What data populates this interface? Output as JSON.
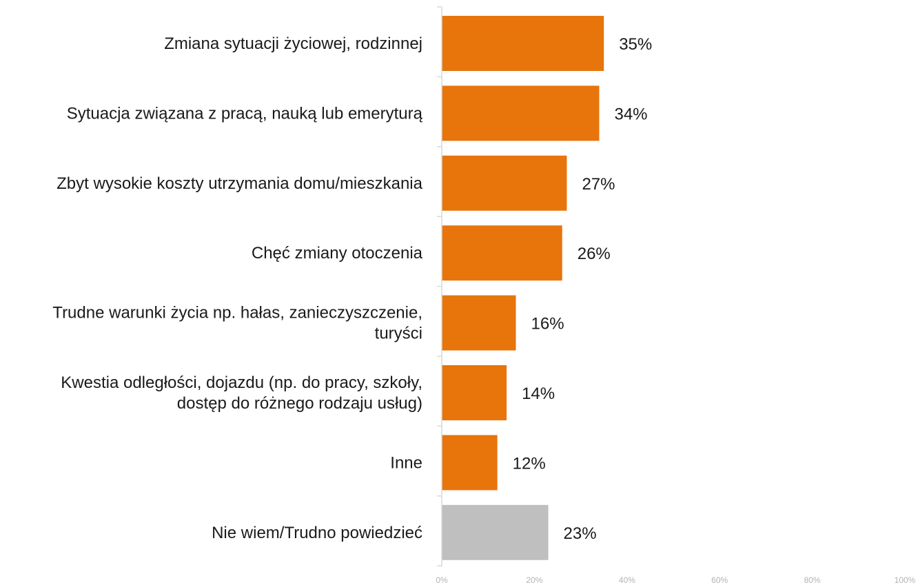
{
  "chart_data": {
    "type": "bar",
    "orientation": "horizontal",
    "categories": [
      [
        "Zmiana sytuacji życiowej, rodzinnej"
      ],
      [
        "Sytuacja związana z pracą, nauką lub emeryturą"
      ],
      [
        "Zbyt wysokie koszty utrzymania domu/mieszkania"
      ],
      [
        "Chęć zmiany otoczenia"
      ],
      [
        "Trudne warunki życia np. hałas, zanieczyszczenie,",
        "turyści"
      ],
      [
        "Kwestia odległości, dojazdu (np. do pracy, szkoły,",
        "dostęp do różnego rodzaju usług)"
      ],
      [
        "Inne"
      ],
      [
        "Nie wiem/Trudno powiedzieć"
      ]
    ],
    "values": [
      35,
      34,
      27,
      26,
      16,
      14,
      12,
      23
    ],
    "value_labels": [
      "35%",
      "34%",
      "27%",
      "26%",
      "16%",
      "14%",
      "12%",
      "23%"
    ],
    "colors": [
      "#E8740C",
      "#E8740C",
      "#E8740C",
      "#E8740C",
      "#E8740C",
      "#E8740C",
      "#E8740C",
      "#BFBFBF"
    ],
    "xlim": [
      0,
      100
    ],
    "x_ticks": [
      "0%",
      "20%",
      "40%",
      "60%",
      "80%",
      "100%"
    ],
    "grid": false,
    "legend": "none"
  }
}
